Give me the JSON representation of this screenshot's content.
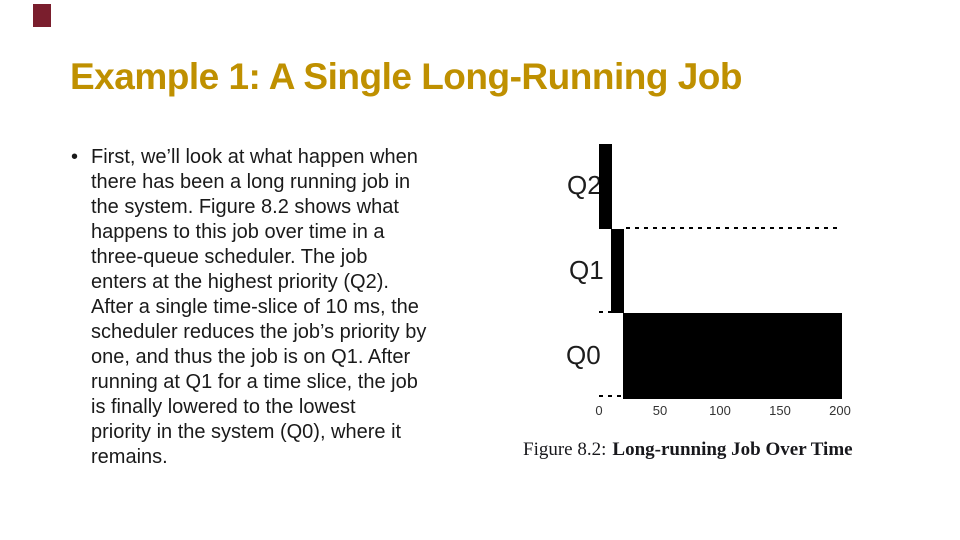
{
  "slide": {
    "title": "Example 1: A Single Long-Running Job",
    "title_color": "#BF9000",
    "accent_square_color": "#7A1E2D",
    "bullet_marker": "•",
    "body_text": "First, we’ll look at what happen when\nthere has been a long running job in\nthe system. Figure 8.2 shows what\nhappens to this job over time in a\nthree-queue scheduler. The job\nenters at the highest priority (Q2).\nAfter a single time-slice of 10 ms, the\nscheduler reduces the job’s priority by\none, and thus the job is on Q1. After\nrunning at Q1 for a time slice, the job\nis finally lowered to the lowest\npriority in the system (Q0), where it\nremains."
  },
  "figure": {
    "queue_labels": [
      "Q2",
      "Q1",
      "Q0"
    ],
    "x_ticks": [
      "0",
      "50",
      "100",
      "150",
      "200"
    ],
    "caption_prefix": "Figure 8.2:",
    "caption_title": "Long-running Job Over Time",
    "bar_color": "#000000"
  },
  "chart_data": {
    "type": "bar",
    "variant": "gantt-timeline",
    "title": "Figure 8.2: Long-running Job Over Time",
    "rows": [
      "Q2",
      "Q1",
      "Q0"
    ],
    "x_range": [
      0,
      200
    ],
    "x_ticks": [
      0,
      50,
      100,
      150,
      200
    ],
    "segments": [
      {
        "queue": "Q2",
        "start": 0,
        "end": 10
      },
      {
        "queue": "Q1",
        "start": 10,
        "end": 20
      },
      {
        "queue": "Q0",
        "start": 20,
        "end": 200
      }
    ],
    "dashed_baselines": [
      {
        "queue": "Q2",
        "start": 20,
        "end": 200
      },
      {
        "queue": "Q1",
        "start": 0,
        "end": 10
      },
      {
        "queue": "Q0",
        "start": 0,
        "end": 20
      }
    ],
    "grid": false,
    "legend": "none",
    "xlabel": "",
    "ylabel": ""
  }
}
